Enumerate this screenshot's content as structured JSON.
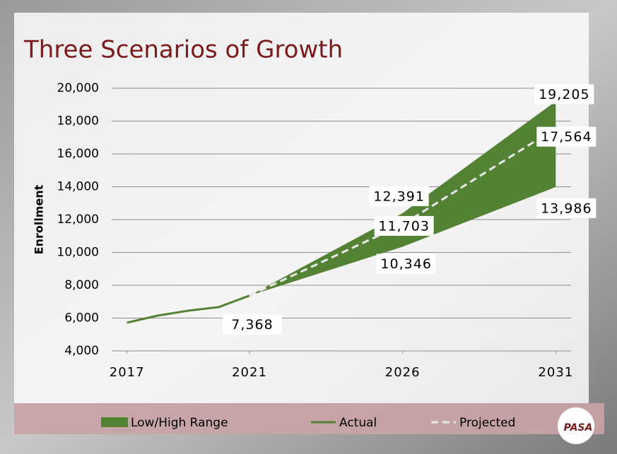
{
  "chart_data": {
    "type": "line",
    "title": "Three Scenarios of Growth",
    "y_label": "Enrollment",
    "xlim": [
      2016.5,
      2031.5
    ],
    "xticks": [
      2017,
      2021,
      2026,
      2031
    ],
    "ylim": [
      4000,
      20000
    ],
    "yticks": [
      {
        "value": 4000,
        "label": "4,000"
      },
      {
        "value": 6000,
        "label": "6,000"
      },
      {
        "value": 8000,
        "label": "8,000"
      },
      {
        "value": 10000,
        "label": "10,000"
      },
      {
        "value": 12000,
        "label": "12,000"
      },
      {
        "value": 14000,
        "label": "14,000"
      },
      {
        "value": 16000,
        "label": "16,000"
      },
      {
        "value": 18000,
        "label": "18,000"
      },
      {
        "value": 20000,
        "label": "20,000"
      }
    ],
    "grid": true,
    "series": [
      {
        "name": "Low/High Range",
        "type": "range",
        "color": "#548235",
        "x": [
          2021,
          2026,
          2031
        ],
        "low": [
          7368,
          10346,
          13986
        ],
        "high": [
          7368,
          12391,
          19205
        ],
        "low_labels": [
          null,
          "10,346",
          "13,986"
        ],
        "high_labels": [
          null,
          "12,391",
          "19,205"
        ]
      },
      {
        "name": "Actual",
        "type": "line",
        "color": "#548235",
        "x": [
          2017,
          2018,
          2019,
          2020,
          2021
        ],
        "values": [
          5720,
          6150,
          6450,
          6670,
          7368
        ],
        "value_labels": [
          null,
          null,
          null,
          null,
          "7,368"
        ]
      },
      {
        "name": "Projected",
        "type": "dashed",
        "color": "#e8e8e8",
        "x": [
          2021,
          2026,
          2031
        ],
        "values": [
          7368,
          11703,
          17564
        ],
        "value_labels": [
          null,
          "11,703",
          "17,564"
        ]
      }
    ],
    "logo": "PASA"
  }
}
